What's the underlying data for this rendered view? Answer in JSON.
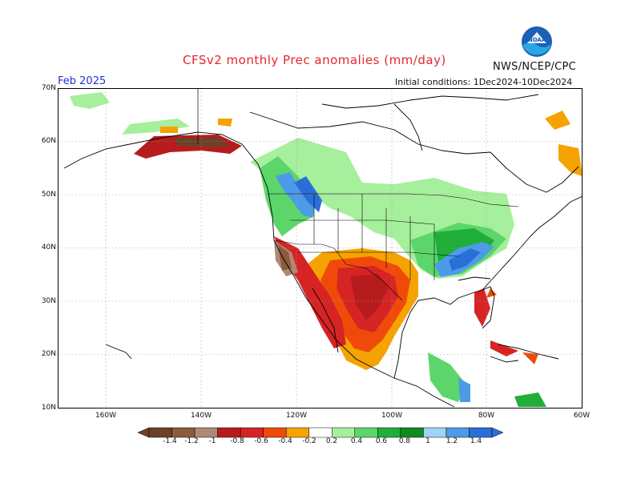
{
  "header": {
    "title": "CFSv2 monthly Prec anomalies (mm/day)",
    "agency": "NWS/NCEP/CPC",
    "logo_text": "NOAA",
    "month": "Feb 2025",
    "initial_conditions": "Initial conditions: 1Dec2024-10Dec2024"
  },
  "axes": {
    "lat_labels": [
      "70N",
      "60N",
      "50N",
      "40N",
      "30N",
      "20N",
      "10N"
    ],
    "lon_labels": [
      "160W",
      "140W",
      "120W",
      "100W",
      "80W",
      "60W"
    ]
  },
  "colorbar": {
    "labels": [
      "-1.4",
      "-1.2",
      "-1",
      "-0.8",
      "-0.6",
      "-0.4",
      "-0.2",
      "0.2",
      "0.4",
      "0.6",
      "0.8",
      "1",
      "1.2",
      "1.4"
    ],
    "colors": [
      "#6b4226",
      "#8c5a3c",
      "#b08876",
      "#b71c1c",
      "#d62424",
      "#f04a0a",
      "#f5a300",
      "#ffffff",
      "#a6ef9c",
      "#5cd66b",
      "#1fae3a",
      "#0f8a1e",
      "#9fd4f5",
      "#4d9be8",
      "#2a6fd8"
    ]
  },
  "map": {
    "region": "North America",
    "land_color": "#ffffff",
    "coast_color": "#000000"
  }
}
